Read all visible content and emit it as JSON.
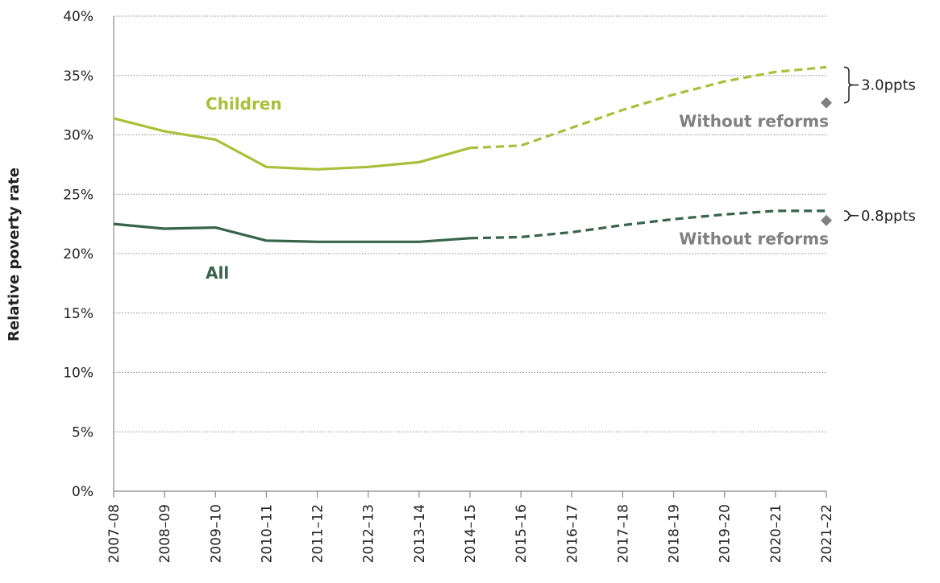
{
  "chart_data": {
    "type": "line",
    "ylabel": "Relative poverty rate",
    "xlabel": "",
    "ylim": [
      0,
      40
    ],
    "yticks": [
      0,
      5,
      10,
      15,
      20,
      25,
      30,
      35,
      40
    ],
    "ytick_labels": [
      "0%",
      "5%",
      "10%",
      "15%",
      "20%",
      "25%",
      "30%",
      "35%",
      "40%"
    ],
    "grid": "horizontal dotted",
    "categories": [
      "2007–08",
      "2008–09",
      "2009–10",
      "2010–11",
      "2011–12",
      "2012–13",
      "2013–14",
      "2014–15",
      "2015–16",
      "2016–17",
      "2017–18",
      "2018–19",
      "2019–20",
      "2020–21",
      "2021–22"
    ],
    "actual_until": "2014–15",
    "series": [
      {
        "name": "Children",
        "color": "#a8c03a",
        "style": "solid until 2014–15, dashed thereafter",
        "values": [
          31.4,
          30.3,
          29.6,
          27.3,
          27.1,
          27.3,
          27.7,
          28.9,
          29.1,
          30.6,
          32.1,
          33.4,
          34.5,
          35.3,
          35.7
        ],
        "without_reforms": {
          "x": "2021–22",
          "value": 32.7,
          "label": "Without reforms"
        },
        "gap_label": "3.0ppts"
      },
      {
        "name": "All",
        "color": "#37644a",
        "style": "solid until 2014–15, dashed thereafter",
        "values": [
          22.5,
          22.1,
          22.2,
          21.1,
          21.0,
          21.0,
          21.0,
          21.3,
          21.4,
          21.8,
          22.4,
          22.9,
          23.3,
          23.6,
          23.6
        ],
        "without_reforms": {
          "x": "2021–22",
          "value": 22.8,
          "label": "Without reforms"
        },
        "gap_label": "0.8ppts"
      }
    ],
    "marker_color": "#808080"
  }
}
